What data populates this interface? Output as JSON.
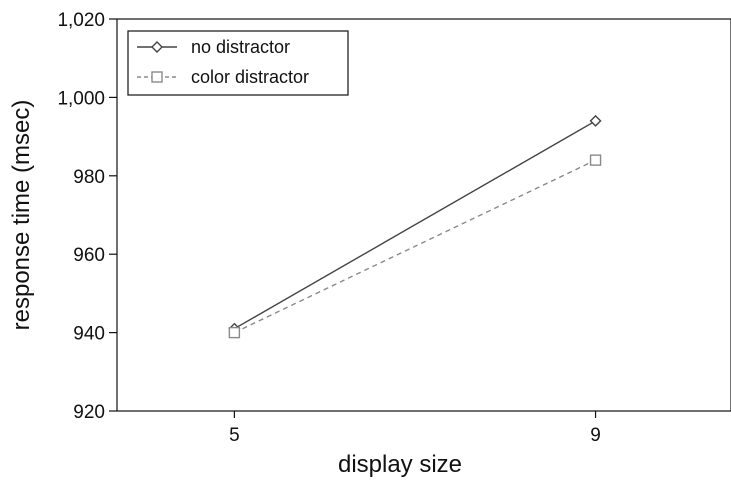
{
  "chart_data": {
    "type": "line",
    "title": "",
    "xlabel": "display size",
    "ylabel": "response time (msec)",
    "categories": [
      "5",
      "9"
    ],
    "x": [
      5,
      9
    ],
    "xlim": [
      3.7,
      10.5
    ],
    "ylim": [
      920,
      1020
    ],
    "yticks": [
      920,
      940,
      960,
      980,
      1000,
      1020
    ],
    "ytick_labels": [
      "920",
      "940",
      "960",
      "980",
      "1,000",
      "1,020"
    ],
    "grid": false,
    "legend": "top-left",
    "series": [
      {
        "name": "no distractor",
        "values": [
          941,
          994
        ],
        "marker": "diamond",
        "line_style": "solid",
        "color": "#444444"
      },
      {
        "name": "color distractor",
        "values": [
          940,
          984
        ],
        "marker": "square",
        "line_style": "dashed",
        "color": "#8a8a8a"
      }
    ]
  }
}
